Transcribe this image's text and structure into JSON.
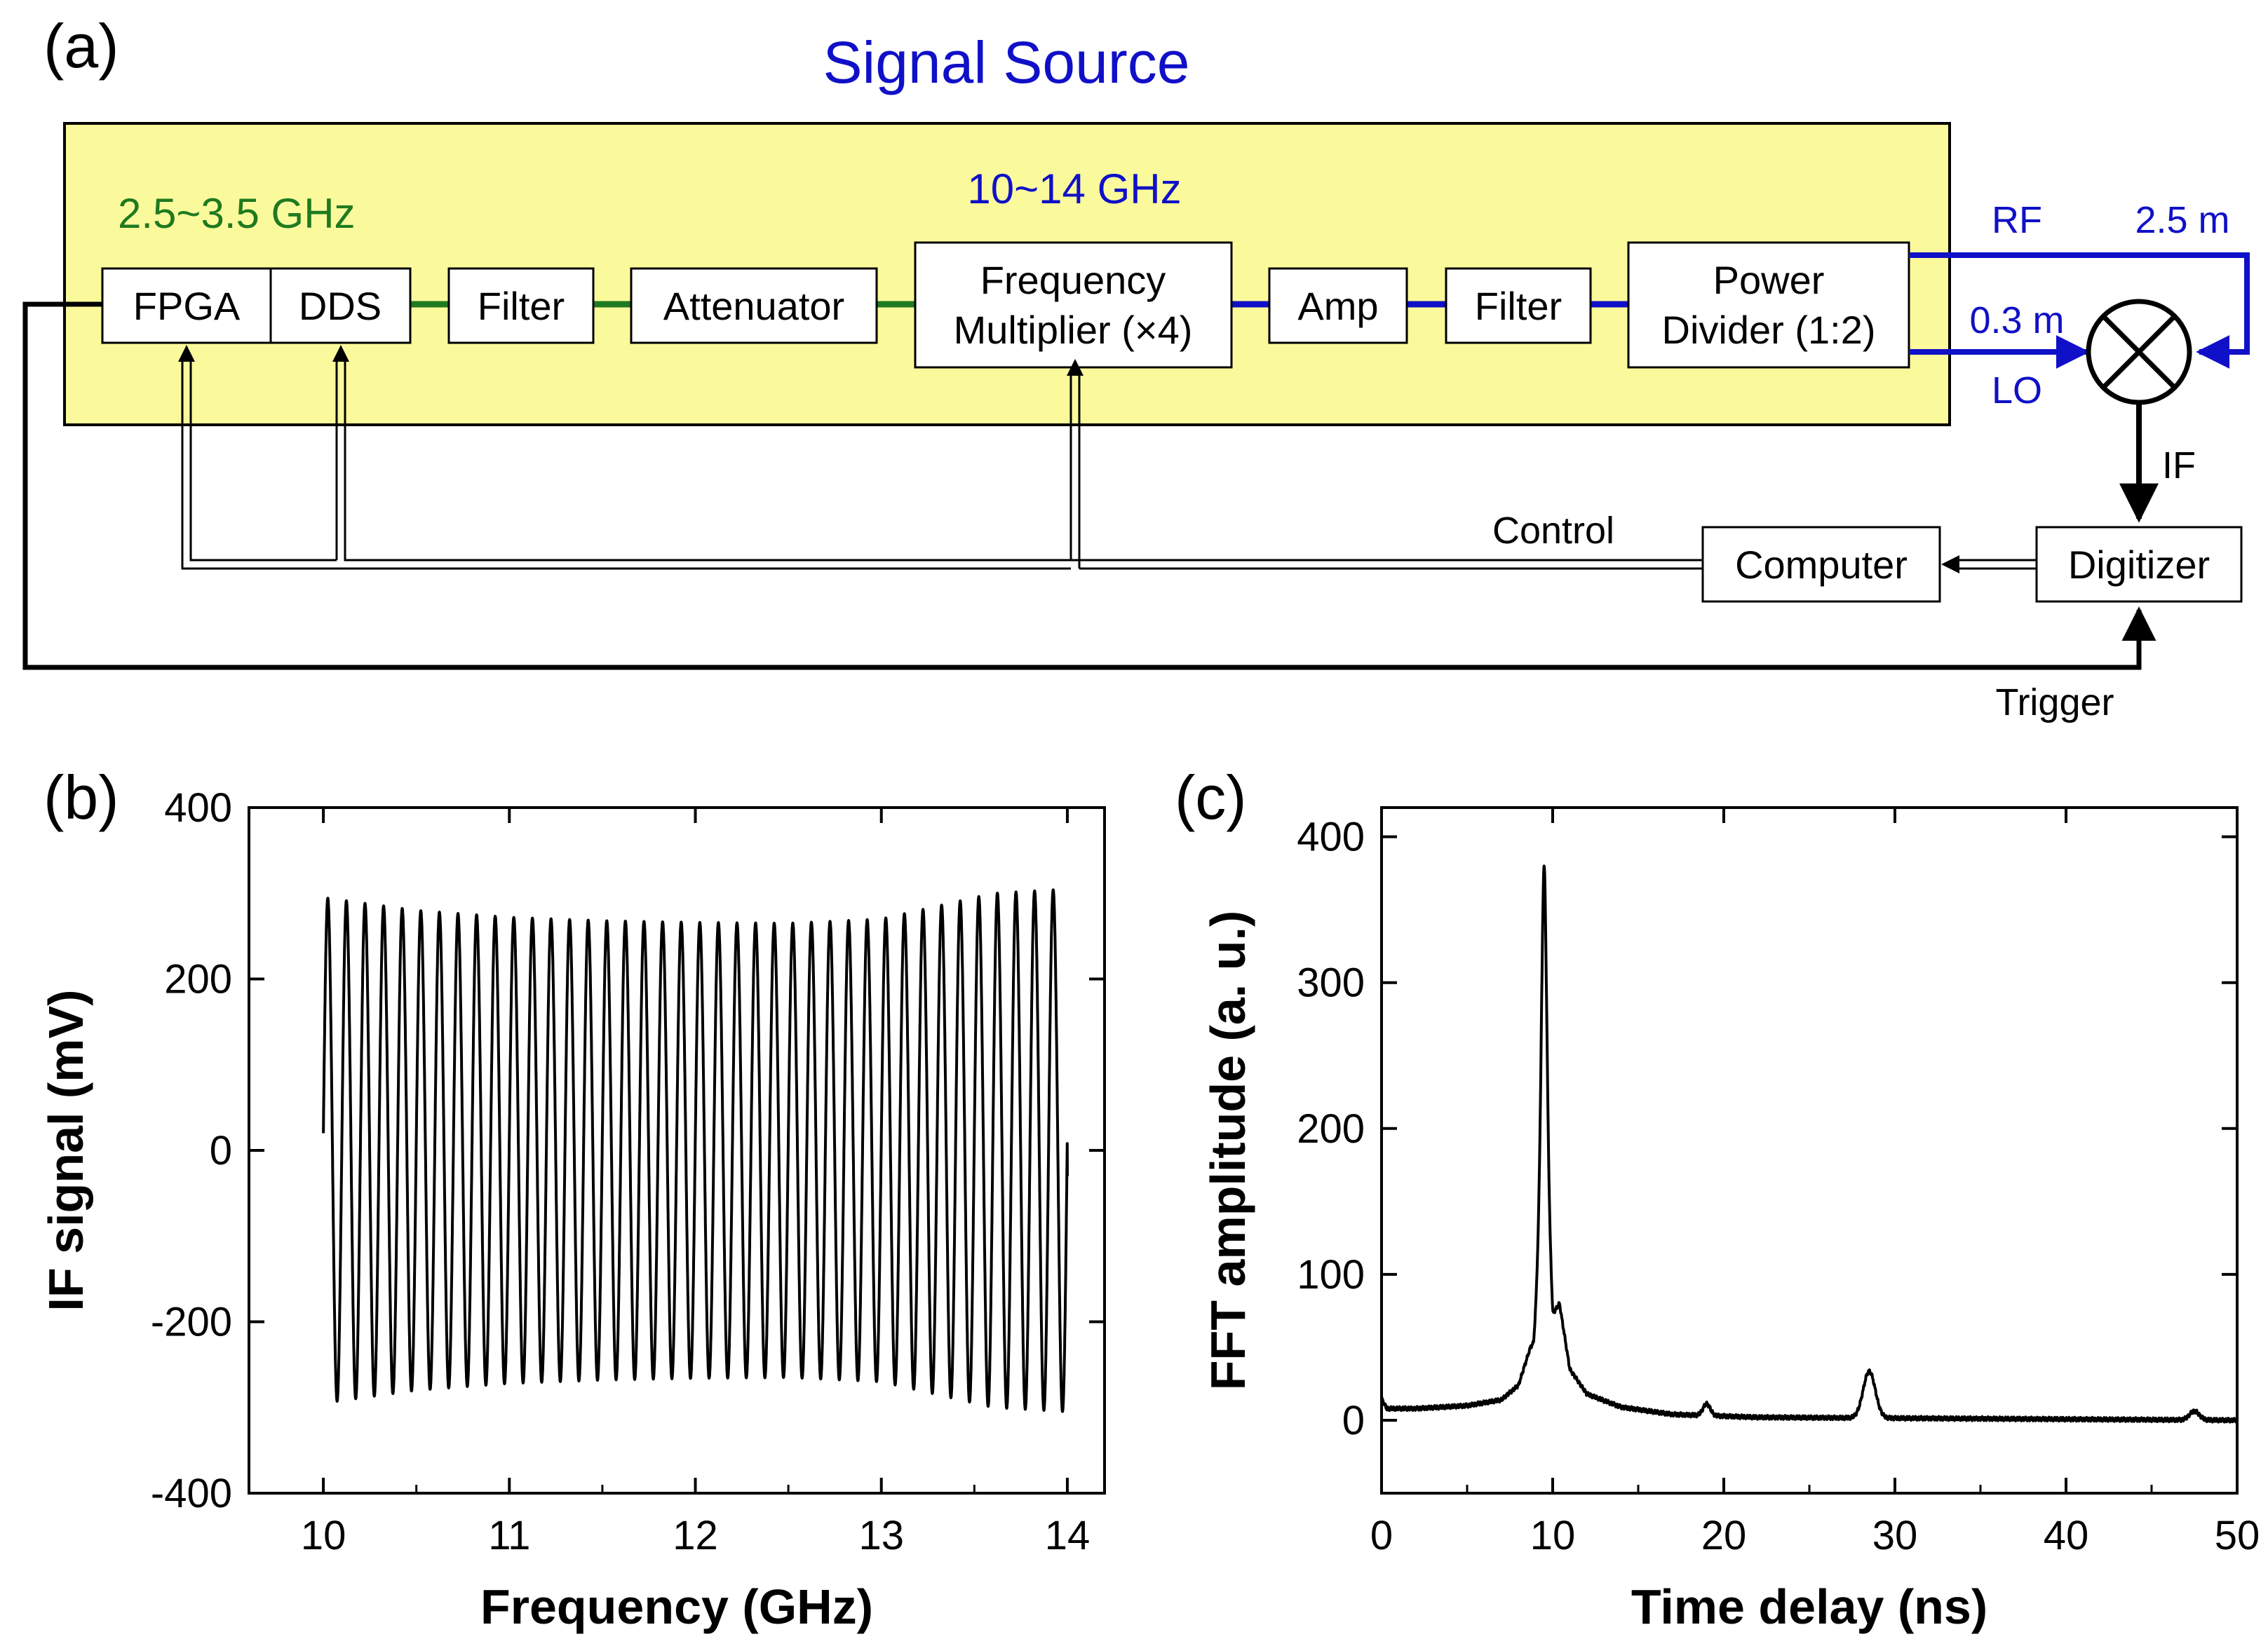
{
  "panel_a": {
    "panel_label": "(a)",
    "title": "Signal Source",
    "band_low": "2.5~3.5 GHz",
    "band_high": "10~14 GHz",
    "blocks": {
      "fpga": "FPGA",
      "dds": "DDS",
      "filter1": "Filter",
      "attenuator": "Attenuator",
      "multiplier_line1": "Frequency",
      "multiplier_line2": "Multiplier (×4)",
      "amp": "Amp",
      "filter2": "Filter",
      "divider_line1": "Power",
      "divider_line2": "Divider (1:2)",
      "computer": "Computer",
      "digitizer": "Digitizer"
    },
    "labels": {
      "rf": "RF",
      "rf_length": "2.5 m",
      "lo_length": "0.3 m",
      "lo": "LO",
      "if": "IF",
      "control": "Control",
      "trigger": "Trigger"
    },
    "colors": {
      "source_bg": "#fafa9c",
      "green": "#1f7a1f",
      "blue": "#1010c8",
      "black": "#000000"
    }
  },
  "panel_b": {
    "panel_label": "(b)",
    "chart_data": {
      "type": "line",
      "title": "",
      "xlabel": "Frequency (GHz)",
      "ylabel": "IF signal (mV)",
      "xlim": [
        9.6,
        14.2
      ],
      "ylim": [
        -400,
        400
      ],
      "xticks": [
        10,
        11,
        12,
        13,
        14
      ],
      "yticks": [
        400,
        200,
        0,
        -200,
        -400
      ],
      "oscillation": {
        "x_start": 10.0,
        "x_end": 14.0,
        "cycles": 40,
        "start_value": 20,
        "end_value": -30,
        "envelope_x": [
          10.0,
          10.5,
          11.0,
          11.5,
          12.0,
          12.5,
          13.0,
          13.3,
          13.6,
          14.0
        ],
        "envelope_amplitude": [
          295,
          280,
          272,
          268,
          266,
          265,
          270,
          285,
          300,
          305
        ]
      }
    }
  },
  "panel_c": {
    "panel_label": "(c)",
    "chart_data": {
      "type": "line",
      "title": "",
      "xlabel": "Time delay (ns)",
      "ylabel": "FFT amplitude (a. u.)",
      "xlim": [
        0,
        50
      ],
      "ylim": [
        -50,
        420
      ],
      "xticks": [
        0,
        10,
        20,
        30,
        40,
        50
      ],
      "yticks": [
        400,
        300,
        200,
        100,
        0
      ],
      "baseline": [
        [
          0,
          15
        ],
        [
          0.3,
          8
        ],
        [
          2,
          8
        ],
        [
          5,
          10
        ],
        [
          7,
          14
        ],
        [
          8,
          24
        ],
        [
          8.7,
          50
        ]
      ],
      "peaks": [
        {
          "x": 9.5,
          "y": 380,
          "width": 0.45
        },
        {
          "x": 19.0,
          "y": 8,
          "width": 0.3
        },
        {
          "x": 28.5,
          "y": 32,
          "width": 0.5
        },
        {
          "x": 47.5,
          "y": 6,
          "width": 0.4
        }
      ],
      "tail": [
        [
          10.4,
          80
        ],
        [
          11,
          35
        ],
        [
          12,
          18
        ],
        [
          14,
          9
        ],
        [
          17,
          4
        ],
        [
          22,
          2
        ],
        [
          50,
          0
        ]
      ]
    }
  }
}
